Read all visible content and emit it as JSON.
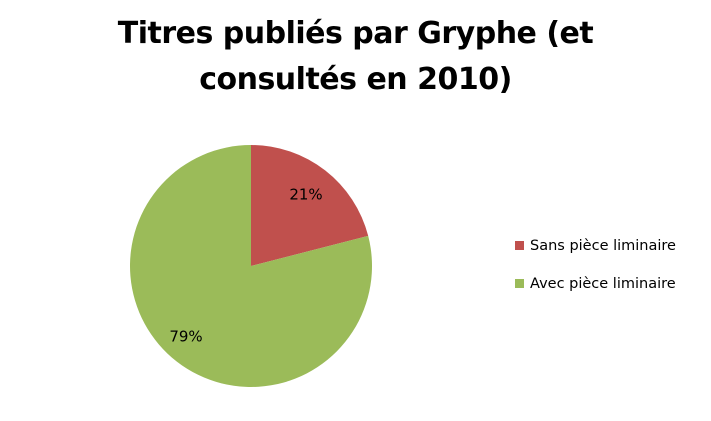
{
  "chart_data": {
    "type": "pie",
    "title_lines": [
      "Titres publiés par Gryphe (et",
      "consultés en 2010)"
    ],
    "slices": [
      {
        "label": "Sans pièce liminaire",
        "value": 21,
        "value_label": "21%",
        "color": "#c0504d"
      },
      {
        "label": "Avec pièce liminaire",
        "value": 79,
        "value_label": "79%",
        "color": "#9bbb59"
      }
    ],
    "legend_position": "right"
  }
}
